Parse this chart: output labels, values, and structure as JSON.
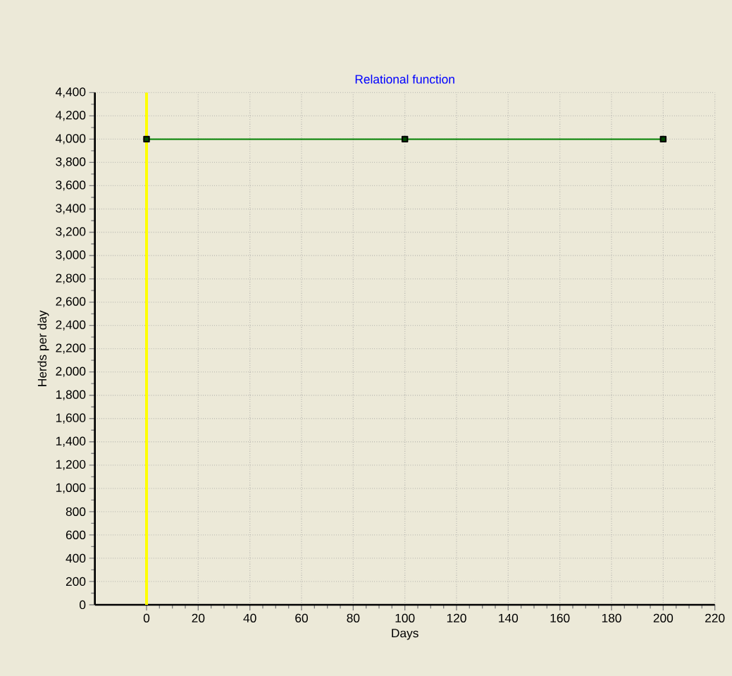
{
  "chart_data": {
    "type": "line",
    "title": "Relational function",
    "xlabel": "Days",
    "ylabel": "Herds per day",
    "x": [
      0,
      100,
      200
    ],
    "series": [
      {
        "color": "#008000",
        "values": [
          4000,
          4000,
          4000
        ]
      }
    ],
    "xlim": [
      -20,
      220
    ],
    "ylim": [
      0,
      4400
    ],
    "xticks": [
      0,
      20,
      40,
      60,
      80,
      100,
      120,
      140,
      160,
      180,
      200,
      220
    ],
    "yticks": [
      0,
      200,
      400,
      600,
      800,
      {
        "value": 1000,
        "label": "1,000"
      },
      {
        "value": 1200,
        "label": "1,200"
      },
      {
        "value": 1400,
        "label": "1,400"
      },
      {
        "value": 1600,
        "label": "1,600"
      },
      {
        "value": 1800,
        "label": "1,800"
      },
      {
        "value": 2000,
        "label": "2,000"
      },
      {
        "value": 2200,
        "label": "2,200"
      },
      {
        "value": 2400,
        "label": "2,400"
      },
      {
        "value": 2600,
        "label": "2,600"
      },
      {
        "value": 2800,
        "label": "2,800"
      },
      {
        "value": 3000,
        "label": "3,000"
      },
      {
        "value": 3200,
        "label": "3,200"
      },
      {
        "value": 3400,
        "label": "3,400"
      },
      {
        "value": 3600,
        "label": "3,600"
      },
      {
        "value": 3800,
        "label": "3,800"
      },
      {
        "value": 4000,
        "label": "4,000"
      },
      {
        "value": 4200,
        "label": "4,200"
      },
      {
        "value": 4400,
        "label": "4,400"
      }
    ],
    "grid": true,
    "marker": "square",
    "ref_lines": [
      {
        "axis": "x",
        "value": 0,
        "color": "#ffff00"
      }
    ]
  }
}
